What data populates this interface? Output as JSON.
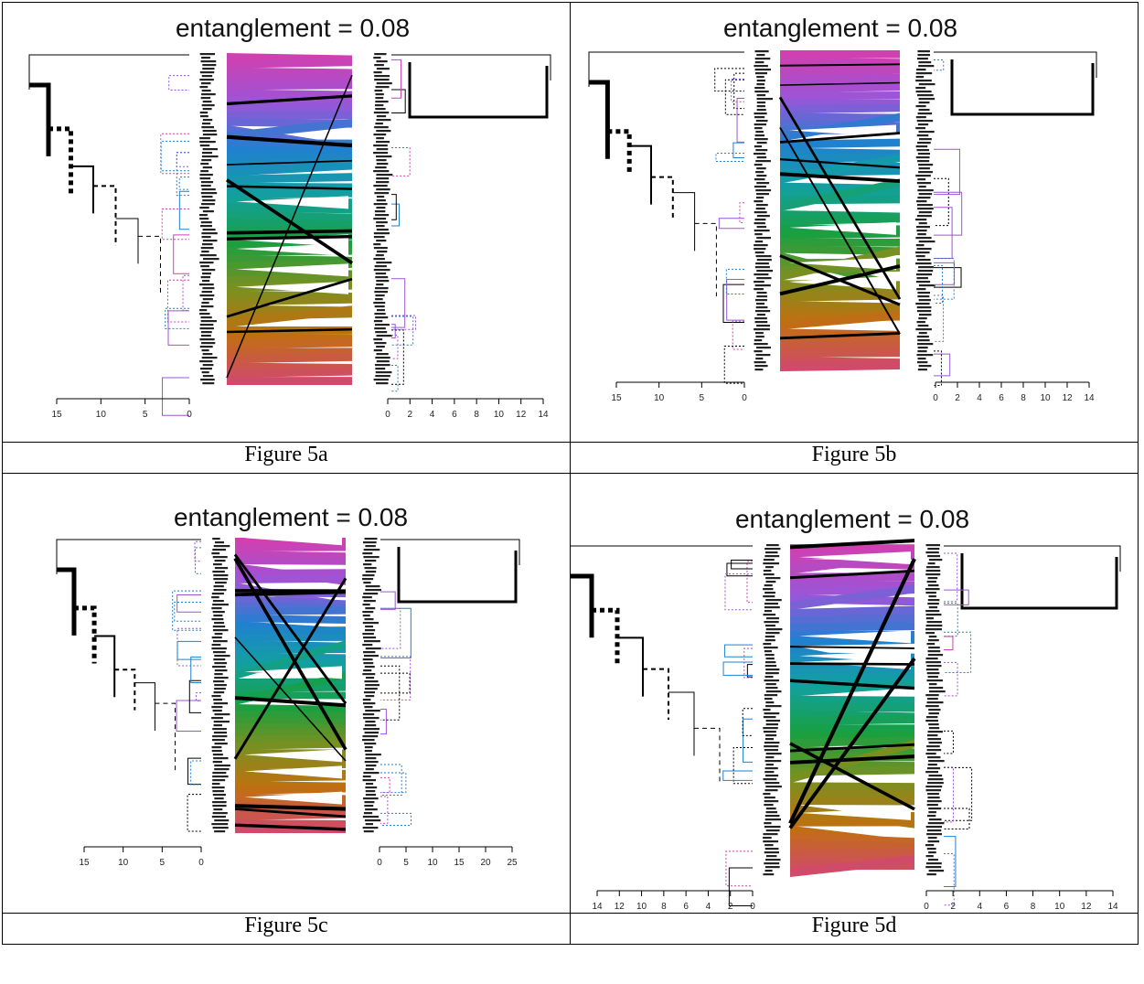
{
  "figures": [
    {
      "id": "5a",
      "caption": "Figure 5a",
      "title": "entanglement = 0.08",
      "left_axis": {
        "ticks": [
          "15",
          "10",
          "5",
          "0"
        ],
        "max": 15
      },
      "right_axis": {
        "ticks": [
          "0",
          "2",
          "4",
          "6",
          "8",
          "10",
          "12",
          "14"
        ],
        "max": 14
      }
    },
    {
      "id": "5b",
      "caption": "Figure 5b",
      "title": "entanglement = 0.08",
      "left_axis": {
        "ticks": [
          "15",
          "10",
          "5",
          "0"
        ],
        "max": 15
      },
      "right_axis": {
        "ticks": [
          "0",
          "2",
          "4",
          "6",
          "8",
          "10",
          "12",
          "14"
        ],
        "max": 14
      }
    },
    {
      "id": "5c",
      "caption": "Figure 5c",
      "title": "entanglement = 0.08",
      "left_axis": {
        "ticks": [
          "15",
          "10",
          "5",
          "0"
        ],
        "max": 15
      },
      "right_axis": {
        "ticks": [
          "0",
          "5",
          "10",
          "15",
          "20",
          "25"
        ],
        "max": 25
      }
    },
    {
      "id": "5d",
      "caption": "Figure 5d",
      "title": "entanglement = 0.08",
      "left_axis": {
        "ticks": [
          "14",
          "12",
          "10",
          "8",
          "6",
          "4",
          "2",
          "0"
        ],
        "max": 14
      },
      "right_axis": {
        "ticks": [
          "0",
          "2",
          "4",
          "6",
          "8",
          "10",
          "12",
          "14"
        ],
        "max": 14
      }
    }
  ],
  "colors": {
    "band_gradient": [
      "#d040b0",
      "#9a55d8",
      "#2080d0",
      "#12a0a0",
      "#18a040",
      "#7a9020",
      "#c07010",
      "#d04a6a"
    ],
    "line": "#000000"
  }
}
